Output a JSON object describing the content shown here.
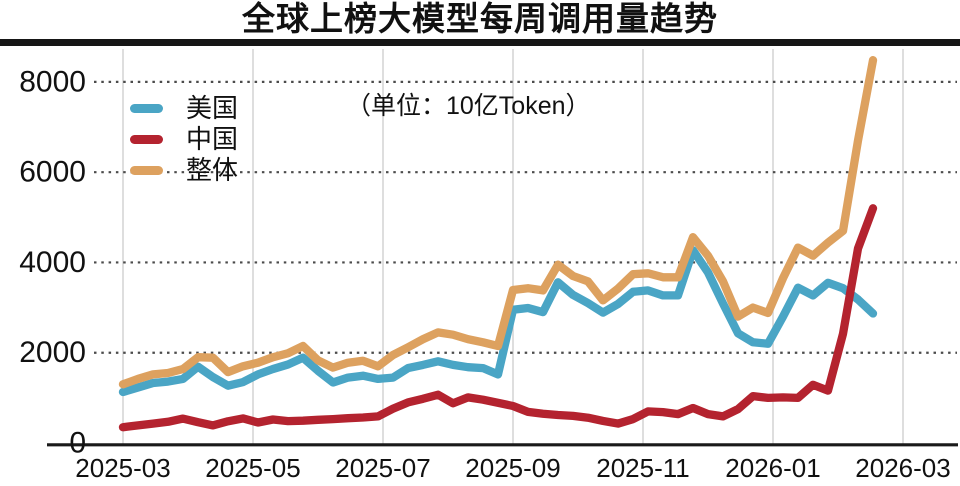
{
  "title": "全球上榜大模型每周调用量趋势",
  "unit_note": "（单位：10亿Token）",
  "legend": [
    {
      "key": "us",
      "label": "美国",
      "color": "#4aa5c5"
    },
    {
      "key": "china",
      "label": "中国",
      "color": "#b4232f"
    },
    {
      "key": "total",
      "label": "整体",
      "color": "#dda15f"
    }
  ],
  "colors": {
    "us": "#4aa5c5",
    "china": "#b4232f",
    "total": "#dda15f",
    "axis": "#1a1a1a",
    "vertical_grid": "#cccccc",
    "dotted_grid": "#4b4b4b",
    "text": "#111111",
    "title_rule": "#161616"
  },
  "chart_data": {
    "type": "line",
    "title": "全球上榜大模型每周调用量趋势",
    "unit": "10亿Token（每周）",
    "x_axis": {
      "tick_labels": [
        "2025-03",
        "2025-05",
        "2025-07",
        "2025-09",
        "2025-11",
        "2026-01",
        "2026-03"
      ],
      "points_are_weekly": true,
      "n_points": 51,
      "first_point_label": "2025-03"
    },
    "y_axis": {
      "ticks": [
        0,
        2000,
        4000,
        6000,
        8000
      ],
      "tick_labels": [
        "0",
        "2000",
        "4000",
        "6000",
        "8000"
      ],
      "range": [
        0,
        8000
      ]
    },
    "grid": {
      "horizontal": "dotted",
      "vertical": "solid"
    },
    "legend_position": "top-left",
    "series": [
      {
        "key": "us",
        "name": "美国",
        "color": "#4aa5c5",
        "values": [
          1130,
          1230,
          1330,
          1360,
          1420,
          1690,
          1460,
          1270,
          1350,
          1520,
          1640,
          1740,
          1890,
          1600,
          1340,
          1450,
          1490,
          1420,
          1450,
          1660,
          1730,
          1810,
          1730,
          1680,
          1660,
          1520,
          2950,
          2990,
          2900,
          3560,
          3280,
          3100,
          2890,
          3080,
          3350,
          3380,
          3270,
          3270,
          4270,
          3780,
          3090,
          2430,
          2230,
          2200,
          2800,
          3440,
          3270,
          3550,
          3430,
          3180,
          2870
        ]
      },
      {
        "key": "china",
        "name": "中国",
        "color": "#b4232f",
        "values": [
          350,
          390,
          430,
          470,
          540,
          460,
          390,
          480,
          545,
          455,
          520,
          485,
          495,
          515,
          530,
          550,
          565,
          590,
          760,
          900,
          980,
          1070,
          880,
          1010,
          960,
          890,
          820,
          690,
          650,
          620,
          600,
          560,
          490,
          430,
          530,
          700,
          685,
          640,
          775,
          640,
          590,
          750,
          1040,
          1000,
          1010,
          1000,
          1290,
          1160,
          2420,
          4310,
          5200
        ]
      },
      {
        "key": "total",
        "name": "整体",
        "color": "#dda15f",
        "values": [
          1300,
          1420,
          1520,
          1550,
          1640,
          1900,
          1890,
          1570,
          1700,
          1780,
          1900,
          1990,
          2150,
          1830,
          1670,
          1780,
          1820,
          1700,
          1950,
          2120,
          2300,
          2450,
          2400,
          2300,
          2230,
          2150,
          3390,
          3430,
          3380,
          3950,
          3700,
          3580,
          3160,
          3420,
          3740,
          3760,
          3670,
          3670,
          4560,
          4150,
          3580,
          2800,
          3000,
          2880,
          3650,
          4330,
          4150,
          4440,
          4700,
          6700,
          8480
        ]
      }
    ]
  }
}
